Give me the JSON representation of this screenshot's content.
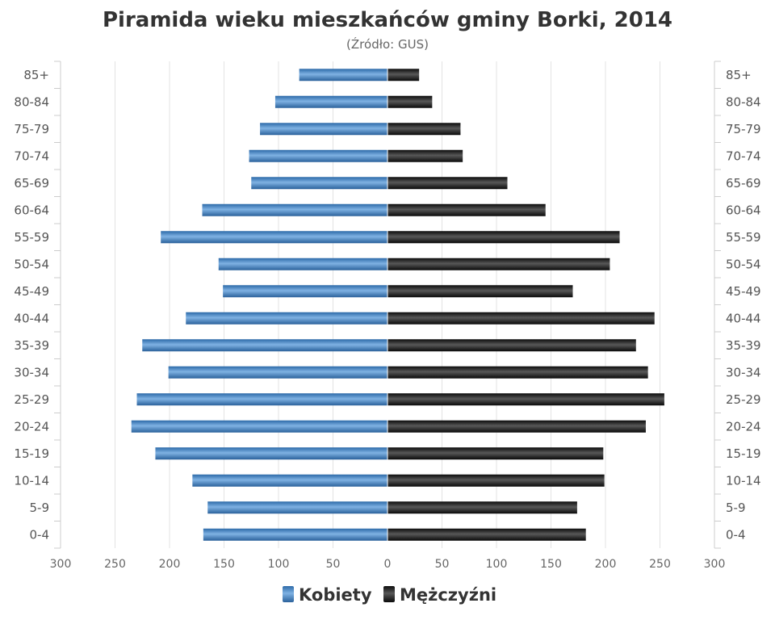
{
  "chart_data": {
    "type": "bar",
    "orientation": "horizontal-population-pyramid",
    "title": "Piramida wieku mieszkańców gminy Borki, 2014",
    "subtitle": "(Źródło: GUS)",
    "categories": [
      "85+",
      "80-84",
      "75-79",
      "70-74",
      "65-69",
      "60-64",
      "55-59",
      "50-54",
      "45-49",
      "40-44",
      "35-39",
      "30-34",
      "25-29",
      "20-24",
      "15-19",
      "10-14",
      "5-9",
      "0-4"
    ],
    "series": [
      {
        "name": "Kobiety",
        "color": "#3f7fbf",
        "values": [
          81,
          103,
          117,
          127,
          125,
          170,
          208,
          155,
          151,
          185,
          225,
          201,
          230,
          235,
          213,
          179,
          165,
          169
        ]
      },
      {
        "name": "Mężczyźni",
        "color": "#1f1f1f",
        "values": [
          29,
          41,
          67,
          69,
          110,
          145,
          213,
          204,
          170,
          245,
          228,
          239,
          254,
          237,
          198,
          199,
          174,
          182
        ]
      }
    ],
    "xlim": [
      -300,
      300
    ],
    "x_tick_values": [
      -300,
      -250,
      -200,
      -150,
      -100,
      -50,
      0,
      50,
      100,
      150,
      200,
      250,
      300
    ],
    "x_tick_labels": [
      "300",
      "250",
      "200",
      "150",
      "100",
      "50",
      "0",
      "50",
      "100",
      "150",
      "200",
      "250",
      "300"
    ],
    "grid": true,
    "legend_position": "bottom-center"
  }
}
